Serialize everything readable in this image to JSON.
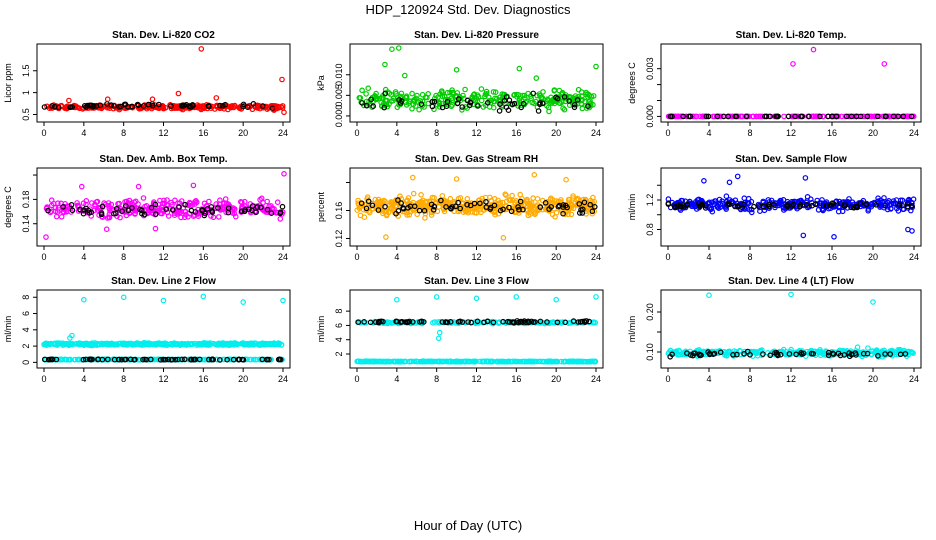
{
  "figure": {
    "title": "HDP_120924  Std. Dev. Diagnostics",
    "xlabel": "Hour of Day (UTC)"
  },
  "chart_data": [
    {
      "type": "scatter",
      "title": "Stan. Dev. Li-820 CO2",
      "ylabel": "Licor ppm",
      "color": "#ff0000",
      "xlim": [
        0,
        24
      ],
      "ylim": [
        0.42,
        2.02
      ],
      "yticks": [
        0.5,
        1.0,
        1.5
      ],
      "ytick_labels": [
        "0.5",
        "1",
        "1.5"
      ],
      "xticks": [
        0,
        4,
        8,
        12,
        16,
        20,
        24
      ],
      "xtick_labels": [
        "0",
        "4",
        "8",
        "12",
        "16",
        "20",
        "24"
      ],
      "bands": [
        {
          "color": "#ff0000",
          "center": 0.67,
          "spread": 0.07,
          "n": 260
        },
        {
          "color": "#000000",
          "center": 0.7,
          "spread": 0.06,
          "n": 55
        }
      ],
      "outliers": [
        [
          15.8,
          2.0
        ],
        [
          13.5,
          0.98
        ],
        [
          23.9,
          1.3
        ],
        [
          17.3,
          0.88
        ],
        [
          23.1,
          0.6
        ],
        [
          2.5,
          0.82
        ],
        [
          6.4,
          0.85
        ],
        [
          10.9,
          0.85
        ],
        [
          24.1,
          0.55
        ]
      ]
    },
    {
      "type": "scatter",
      "title": "Stan. Dev. Li-820 Pressure",
      "ylabel": "kPa",
      "color": "#00cc00",
      "xlim": [
        0,
        24
      ],
      "ylim": [
        -0.0005,
        0.0165
      ],
      "yticks": [
        0.0,
        0.005,
        0.01
      ],
      "ytick_labels": [
        "0.000",
        "0.005",
        "0.010"
      ],
      "xticks": [
        0,
        4,
        8,
        12,
        16,
        20,
        24
      ],
      "xtick_labels": [
        "0",
        "4",
        "8",
        "12",
        "16",
        "20",
        "24"
      ],
      "bands": [
        {
          "color": "#00cc00",
          "center": 0.004,
          "spread": 0.0035,
          "n": 300
        },
        {
          "color": "#000000",
          "center": 0.003,
          "spread": 0.003,
          "n": 50
        }
      ],
      "outliers": [
        [
          3.5,
          0.0162
        ],
        [
          4.2,
          0.0165
        ],
        [
          2.8,
          0.0125
        ],
        [
          16.3,
          0.0115
        ],
        [
          24.0,
          0.012
        ],
        [
          4.8,
          0.0098
        ],
        [
          10.0,
          0.0112
        ],
        [
          18.0,
          0.0092
        ]
      ]
    },
    {
      "type": "scatter",
      "title": "Stan. Dev. Li-820 Temp.",
      "ylabel": "degrees C",
      "color": "#ff00ff",
      "xlim": [
        0,
        24
      ],
      "ylim": [
        -0.0001,
        0.0043
      ],
      "yticks": [
        0.0,
        0.001,
        0.002,
        0.003
      ],
      "ytick_labels": [
        "0.000",
        "",
        "",
        "0.003"
      ],
      "xticks": [
        0,
        4,
        8,
        12,
        16,
        20,
        24
      ],
      "xtick_labels": [
        "0",
        "4",
        "8",
        "12",
        "16",
        "20",
        "24"
      ],
      "bands": [
        {
          "color": "#ff00ff",
          "center": 0.0,
          "spread": 0.0,
          "n": 180
        },
        {
          "color": "#000000",
          "center": 0.0,
          "spread": 0.0,
          "n": 45
        }
      ],
      "outliers": [
        [
          12.2,
          0.0033
        ],
        [
          14.2,
          0.0042
        ],
        [
          21.1,
          0.0033
        ]
      ]
    },
    {
      "type": "scatter",
      "title": "Stan. Dev. Amb. Box Temp.",
      "ylabel": "degrees C",
      "color": "#ff00ff",
      "xlim": [
        0,
        24
      ],
      "ylim": [
        0.11,
        0.225
      ],
      "yticks": [
        0.14,
        0.18,
        0.22
      ],
      "ytick_labels": [
        "0.14",
        "0.18",
        ""
      ],
      "xticks": [
        0,
        4,
        8,
        12,
        16,
        20,
        24
      ],
      "xtick_labels": [
        "0",
        "4",
        "8",
        "12",
        "16",
        "20",
        "24"
      ],
      "bands": [
        {
          "color": "#ff00ff",
          "center": 0.165,
          "spread": 0.022,
          "n": 300
        },
        {
          "color": "#000000",
          "center": 0.163,
          "spread": 0.015,
          "n": 60
        }
      ],
      "outliers": [
        [
          24.1,
          0.222
        ],
        [
          0.2,
          0.118
        ],
        [
          3.8,
          0.201
        ],
        [
          9.5,
          0.201
        ],
        [
          15.0,
          0.203
        ],
        [
          6.3,
          0.131
        ],
        [
          11.2,
          0.132
        ]
      ]
    },
    {
      "type": "scatter",
      "title": "Stan. Dev. Gas Stream RH",
      "ylabel": "percent",
      "color": "#ffaa00",
      "xlim": [
        0,
        24
      ],
      "ylim": [
        0.115,
        0.215
      ],
      "yticks": [
        0.12,
        0.16,
        0.2
      ],
      "ytick_labels": [
        "0.12",
        "0.16",
        ""
      ],
      "xticks": [
        0,
        4,
        8,
        12,
        16,
        20,
        24
      ],
      "xtick_labels": [
        "0",
        "4",
        "8",
        "12",
        "16",
        "20",
        "24"
      ],
      "bands": [
        {
          "color": "#ffaa00",
          "center": 0.166,
          "spread": 0.02,
          "n": 420
        },
        {
          "color": "#000000",
          "center": 0.165,
          "spread": 0.013,
          "n": 65
        }
      ],
      "outliers": [
        [
          17.8,
          0.211
        ],
        [
          2.9,
          0.122
        ],
        [
          14.7,
          0.121
        ],
        [
          10.0,
          0.205
        ],
        [
          5.6,
          0.207
        ],
        [
          21.0,
          0.204
        ]
      ]
    },
    {
      "type": "scatter",
      "title": "Stan. Dev. Sample Flow",
      "ylabel": "ml/min",
      "color": "#0000ff",
      "xlim": [
        0,
        24
      ],
      "ylim": [
        0.63,
        1.58
      ],
      "yticks": [
        0.8,
        1.0,
        1.2,
        1.4
      ],
      "ytick_labels": [
        "0.8",
        "",
        "1.2",
        ""
      ],
      "xticks": [
        0,
        4,
        8,
        12,
        16,
        20,
        24
      ],
      "xtick_labels": [
        "0",
        "4",
        "8",
        "12",
        "16",
        "20",
        "24"
      ],
      "bands": [
        {
          "color": "#0000ff",
          "center": 1.14,
          "spread": 0.12,
          "n": 320
        },
        {
          "color": "#000000",
          "center": 1.12,
          "spread": 0.05,
          "n": 70
        }
      ],
      "outliers": [
        [
          6.8,
          1.52
        ],
        [
          13.4,
          1.5
        ],
        [
          16.2,
          0.7
        ],
        [
          13.2,
          0.72
        ],
        [
          23.4,
          0.8
        ],
        [
          23.8,
          0.78
        ],
        [
          3.5,
          1.46
        ],
        [
          6.0,
          1.44
        ]
      ]
    },
    {
      "type": "scatter",
      "title": "Stan. Dev. Line 2 Flow",
      "ylabel": "ml/min",
      "color": "#00eeee",
      "xlim": [
        0,
        24
      ],
      "ylim": [
        -0.2,
        8.4
      ],
      "yticks": [
        0,
        2,
        4,
        6,
        8
      ],
      "ytick_labels": [
        "0",
        "2",
        "4",
        "6",
        "8"
      ],
      "xticks": [
        0,
        4,
        8,
        12,
        16,
        20,
        24
      ],
      "xtick_labels": [
        "0",
        "4",
        "8",
        "12",
        "16",
        "20",
        "24"
      ],
      "bands": [
        {
          "color": "#00eeee",
          "center": 2.25,
          "spread": 0.2,
          "n": 380
        },
        {
          "color": "#00eeee",
          "center": 0.35,
          "spread": 0.05,
          "n": 220
        },
        {
          "color": "#000000",
          "center": 0.35,
          "spread": 0.05,
          "n": 70
        }
      ],
      "outliers": [
        [
          4.0,
          7.7
        ],
        [
          8.0,
          8.0
        ],
        [
          12.0,
          7.6
        ],
        [
          16.0,
          8.1
        ],
        [
          20.0,
          7.4
        ],
        [
          24.0,
          7.6
        ],
        [
          2.8,
          3.3
        ],
        [
          2.6,
          3.0
        ]
      ]
    },
    {
      "type": "scatter",
      "title": "Stan. Dev. Line 3 Flow",
      "ylabel": "ml/min",
      "color": "#00eeee",
      "xlim": [
        0,
        24
      ],
      "ylim": [
        0.6,
        10.4
      ],
      "yticks": [
        2,
        4,
        6,
        8
      ],
      "ytick_labels": [
        "2",
        "4",
        "6",
        "8"
      ],
      "xticks": [
        0,
        4,
        8,
        12,
        16,
        20,
        24
      ],
      "xtick_labels": [
        "0",
        "4",
        "8",
        "12",
        "16",
        "20",
        "24"
      ],
      "bands": [
        {
          "color": "#00eeee",
          "center": 6.4,
          "spread": 0.2,
          "n": 170
        },
        {
          "color": "#00eeee",
          "center": 0.95,
          "spread": 0.06,
          "n": 300
        },
        {
          "color": "#000000",
          "center": 6.5,
          "spread": 0.18,
          "n": 70
        }
      ],
      "outliers": [
        [
          4.0,
          9.6
        ],
        [
          8.0,
          10.0
        ],
        [
          12.0,
          9.8
        ],
        [
          16.0,
          10.0
        ],
        [
          20.0,
          9.6
        ],
        [
          24.0,
          10.0
        ],
        [
          8.2,
          4.2
        ],
        [
          8.3,
          5.0
        ]
      ]
    },
    {
      "type": "scatter",
      "title": "Stan. Dev. Line 4 (LT) Flow",
      "ylabel": "ml/min",
      "color": "#00eeee",
      "xlim": [
        0,
        24
      ],
      "ylim": [
        0.07,
        0.245
      ],
      "yticks": [
        0.1,
        0.15,
        0.2
      ],
      "ytick_labels": [
        "0.10",
        "",
        "0.20"
      ],
      "xticks": [
        0,
        4,
        8,
        12,
        16,
        20,
        24
      ],
      "xtick_labels": [
        "0",
        "4",
        "8",
        "12",
        "16",
        "20",
        "24"
      ],
      "bands": [
        {
          "color": "#00eeee",
          "center": 0.098,
          "spread": 0.011,
          "n": 300
        },
        {
          "color": "#000000",
          "center": 0.094,
          "spread": 0.008,
          "n": 55
        }
      ],
      "outliers": [
        [
          4.0,
          0.242
        ],
        [
          12.0,
          0.244
        ],
        [
          20.0,
          0.225
        ],
        [
          19.5,
          0.11
        ],
        [
          18.5,
          0.112
        ]
      ]
    }
  ]
}
